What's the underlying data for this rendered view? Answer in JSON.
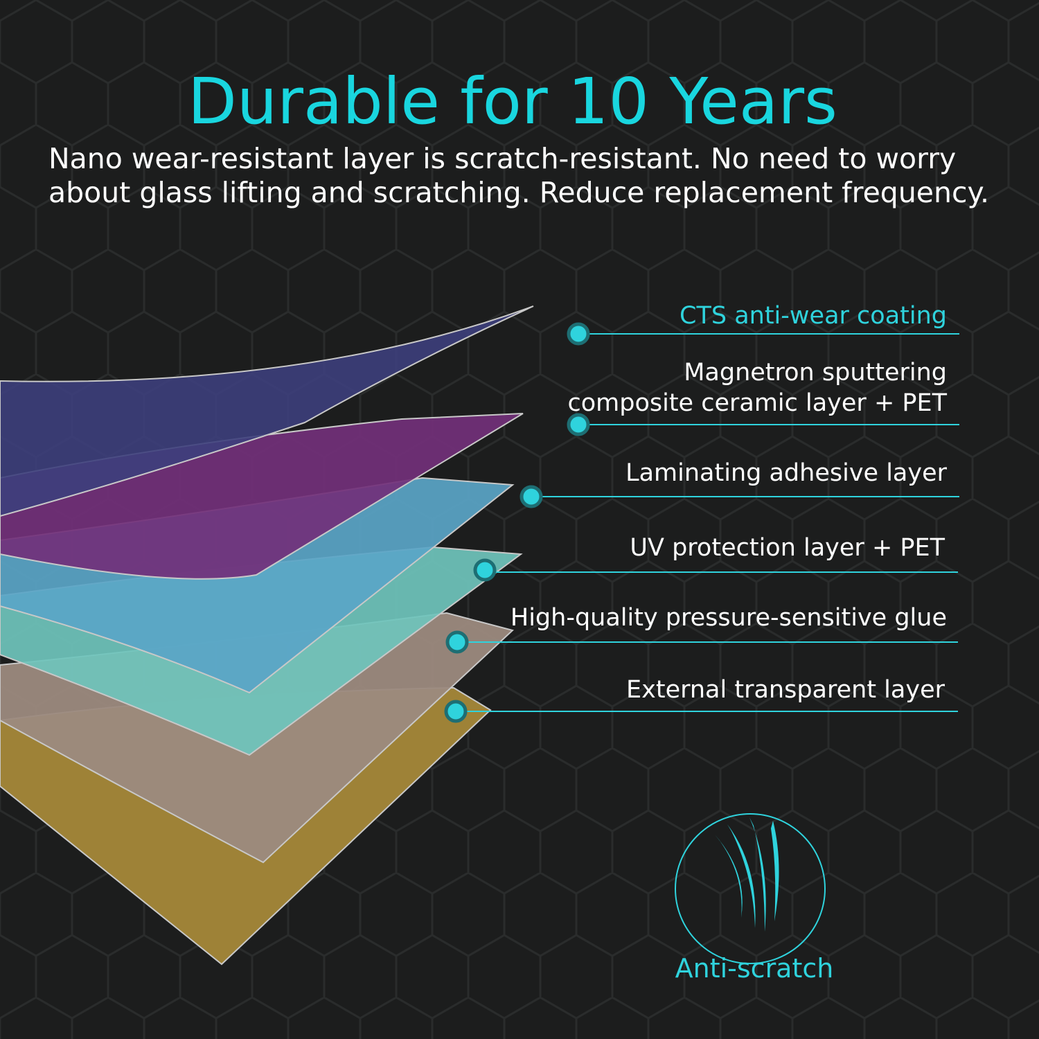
{
  "header": {
    "title": "Durable for 10 Years",
    "subtitle": [
      "Nano wear-resistant layer is scratch-resistant. No need to worry",
      "about glass lifting and scratching. Reduce replacement frequency."
    ]
  },
  "layers": [
    {
      "lines": [
        "CTS anti-wear coating"
      ]
    },
    {
      "lines": [
        "Magnetron sputtering",
        "composite ceramic layer + PET"
      ]
    },
    {
      "lines": [
        "Laminating adhesive layer"
      ]
    },
    {
      "lines": [
        "UV protection layer + PET"
      ]
    },
    {
      "lines": [
        "High-quality pressure-sensitive glue"
      ]
    },
    {
      "lines": [
        "External transparent layer"
      ]
    }
  ],
  "badge": {
    "label": "Anti-scratch"
  }
}
